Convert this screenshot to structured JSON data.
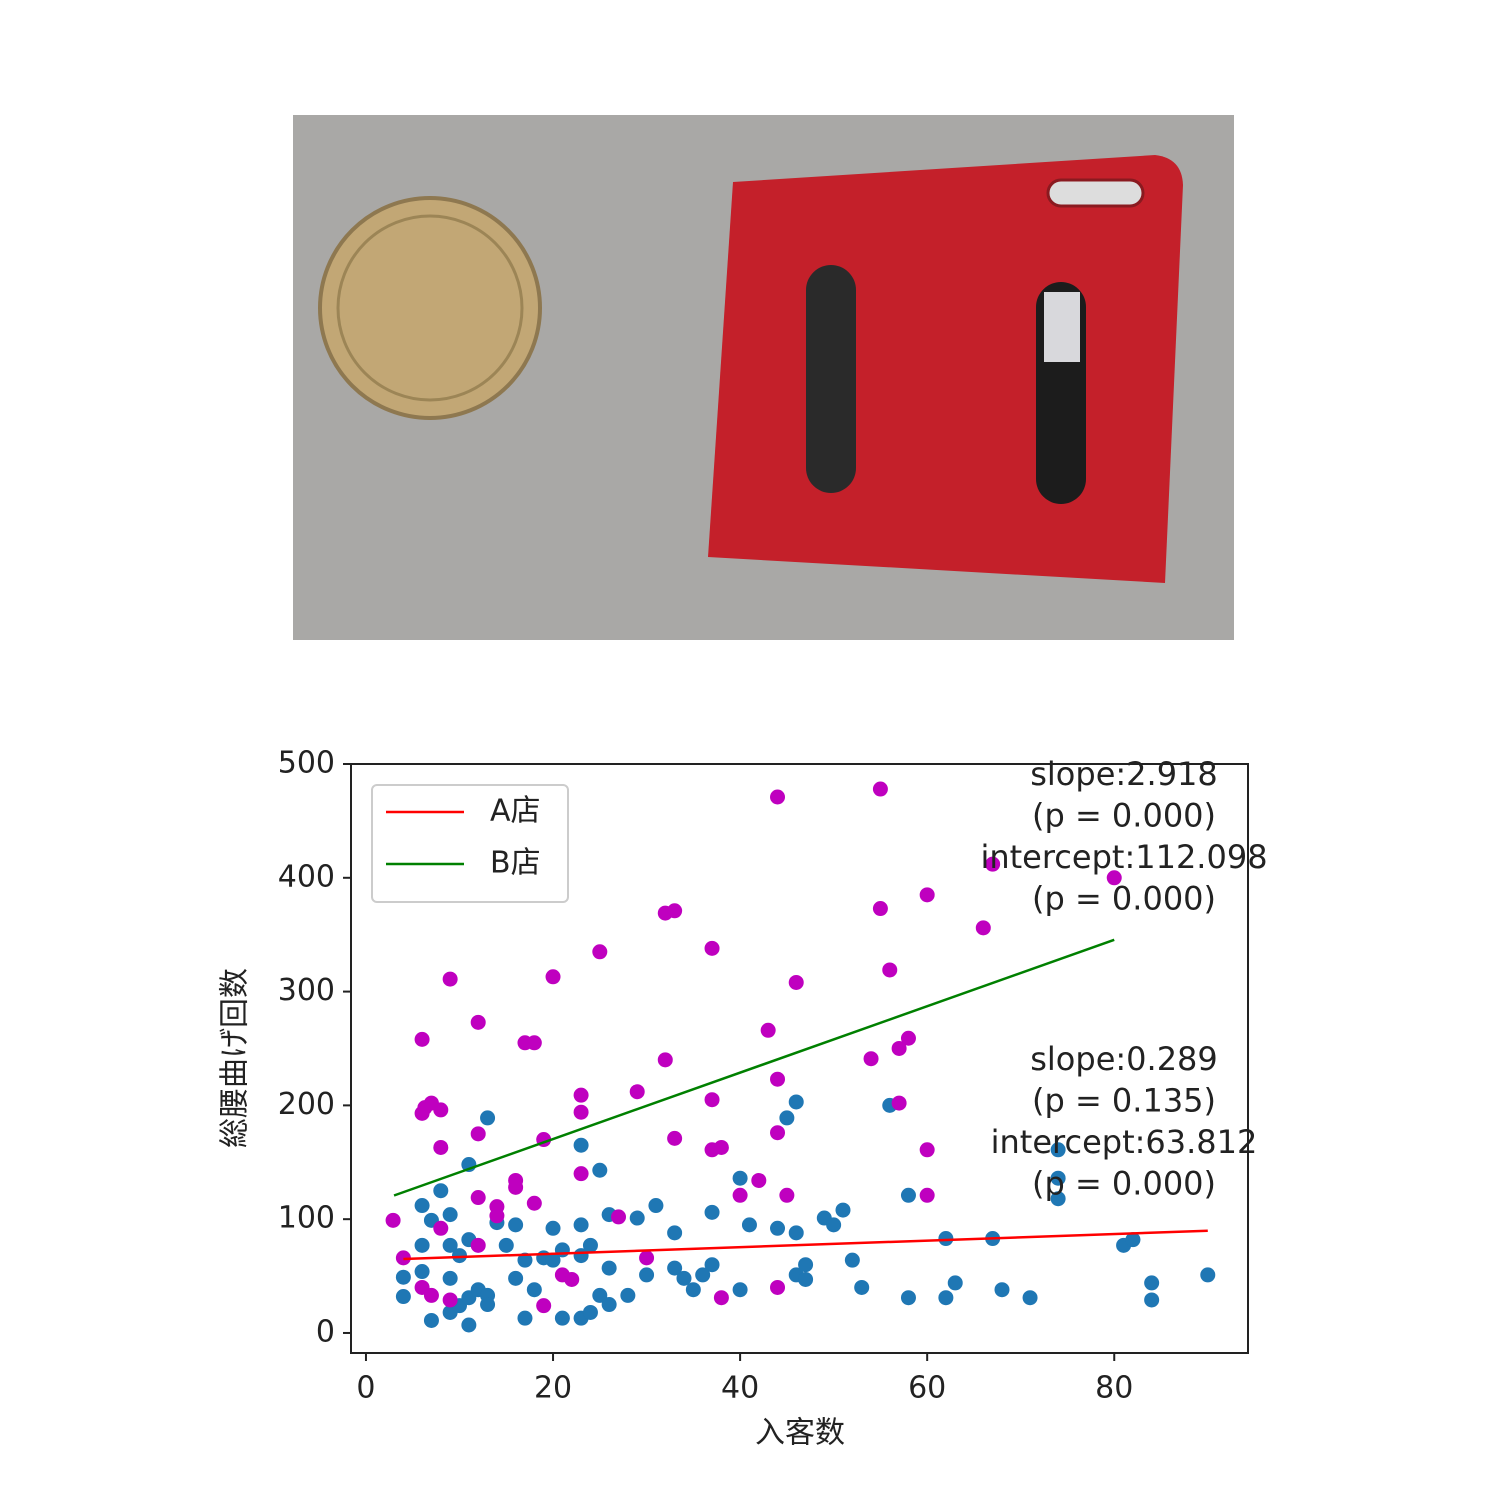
{
  "chart_data": {
    "type": "scatter",
    "xlabel": "入客数",
    "ylabel": "総腰曲げ回数",
    "xlim": [
      -1.6,
      94.3
    ],
    "ylim": [
      -17.6,
      500
    ],
    "xticks": [
      0,
      20,
      40,
      60,
      80
    ],
    "yticks": [
      0,
      100,
      200,
      300,
      400,
      500
    ],
    "legend": "upper left",
    "series": [
      {
        "name": "A店",
        "color": "#ff0000",
        "type": "line",
        "x": [
          4,
          90
        ],
        "values": [
          65,
          89.8
        ]
      },
      {
        "name": "B店",
        "color": "#008000",
        "type": "line",
        "x": [
          3,
          80
        ],
        "values": [
          120.8,
          345.5
        ]
      },
      {
        "color": "#1f77b4",
        "type": "scatter",
        "x": [
          4,
          4,
          6,
          6,
          6,
          7,
          7,
          8,
          9,
          9,
          9,
          9,
          10,
          10,
          11,
          11,
          11,
          11,
          12,
          13,
          13,
          13,
          14,
          15,
          16,
          16,
          17,
          17,
          18,
          19,
          20,
          20,
          21,
          21,
          23,
          23,
          23,
          23,
          24,
          24,
          25,
          25,
          26,
          26,
          26,
          28,
          29,
          30,
          31,
          33,
          33,
          34,
          35,
          36,
          37,
          37,
          40,
          40,
          41,
          44,
          45,
          46,
          46,
          46,
          47,
          47,
          49,
          50,
          51,
          52,
          53,
          56,
          58,
          58,
          62,
          62,
          63,
          67,
          68,
          71,
          74,
          74,
          74,
          81,
          82,
          84,
          84,
          90
        ],
        "values": [
          49,
          32,
          112,
          77,
          54,
          99,
          11,
          125,
          104,
          77,
          48,
          18,
          68,
          24,
          148,
          82,
          31,
          7,
          38,
          189,
          33,
          25,
          97,
          77,
          95,
          48,
          64,
          13,
          38,
          66,
          92,
          64,
          73,
          13,
          165,
          95,
          68,
          13,
          77,
          18,
          143,
          33,
          104,
          57,
          25,
          33,
          101,
          51,
          112,
          88,
          57,
          48,
          38,
          51,
          60,
          106,
          136,
          38,
          95,
          92,
          189,
          203,
          88,
          51,
          60,
          47,
          101,
          95,
          108,
          64,
          40,
          200,
          121,
          31,
          83,
          31,
          44,
          83,
          38,
          31,
          161,
          136,
          118,
          77,
          82,
          44,
          29,
          51
        ]
      },
      {
        "color": "#bf00bf",
        "type": "scatter",
        "x": [
          2.9,
          4,
          6,
          6,
          6.3,
          7,
          8,
          8,
          9,
          8,
          6,
          7,
          9,
          12,
          12,
          12,
          12,
          14,
          14,
          16,
          16,
          17,
          18,
          18,
          19,
          19,
          20,
          21,
          22,
          23,
          23,
          23,
          25,
          27,
          29,
          30,
          32,
          33,
          32,
          33,
          37,
          37,
          37,
          38,
          38,
          40,
          42,
          43,
          44,
          44,
          44,
          44,
          45,
          46,
          55,
          55,
          54,
          56,
          57,
          57,
          58,
          60,
          60,
          60,
          66,
          67,
          80
        ],
        "values": [
          99,
          66,
          258,
          193,
          198,
          202,
          196,
          163,
          311,
          92,
          40,
          33,
          29,
          273,
          175,
          119,
          77,
          111,
          103,
          134,
          128,
          255,
          255,
          114,
          170,
          24,
          313,
          51,
          47,
          209,
          194,
          140,
          335,
          102,
          212,
          66,
          369,
          371,
          240,
          171,
          338,
          205,
          161,
          163,
          31,
          121,
          134,
          266,
          471,
          223,
          176,
          40,
          121,
          308,
          478,
          373,
          241,
          319,
          202,
          250,
          259,
          385,
          161,
          121,
          356,
          412,
          400
        ]
      }
    ],
    "annotations": [
      [
        "slope:2.918",
        "(p = 0.000)",
        "intercept:112.098",
        "(p = 0.000)"
      ],
      [
        "slope:0.289",
        "(p = 0.135)",
        "intercept:63.812",
        "(p = 0.000)"
      ]
    ]
  }
}
